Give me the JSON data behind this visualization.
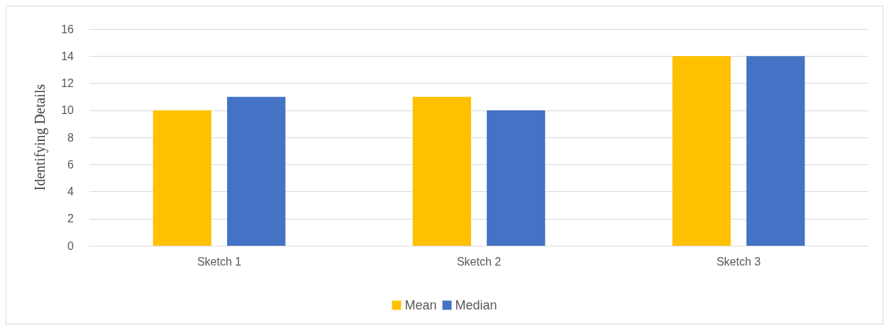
{
  "chart_data": {
    "type": "bar",
    "ylabel": "Identifying Details",
    "categories": [
      "Sketch 1",
      "Sketch 2",
      "Sketch 3"
    ],
    "series": [
      {
        "name": "Mean",
        "color": "#ffc000",
        "values": [
          10,
          11,
          14
        ]
      },
      {
        "name": "Median",
        "color": "#4472c4",
        "values": [
          11,
          10,
          14
        ]
      }
    ],
    "ylim": [
      0,
      16
    ],
    "yticks": [
      0,
      2,
      4,
      6,
      8,
      10,
      12,
      14,
      16
    ],
    "grid": "y",
    "legend": "bottom"
  }
}
